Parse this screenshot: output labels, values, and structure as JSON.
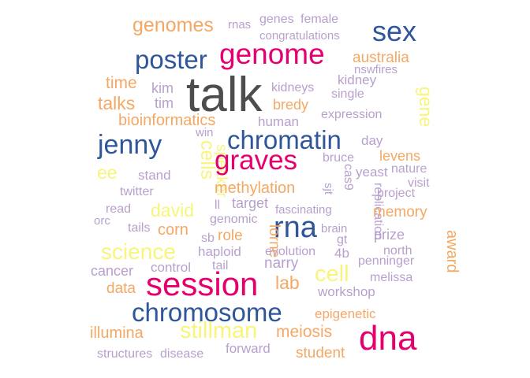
{
  "palette": {
    "dark": "#4d4d4d",
    "blue": "#2f569a",
    "magenta": "#e6006e",
    "orange": "#f5a864",
    "purple": "#b8a0cd",
    "yellow": "#f8f57a"
  },
  "words": [
    {
      "text": "talk",
      "color": "dark"
    },
    {
      "text": "genome",
      "color": "magenta"
    },
    {
      "text": "sex",
      "color": "blue"
    },
    {
      "text": "poster",
      "color": "blue"
    },
    {
      "text": "genomes",
      "color": "orange"
    },
    {
      "text": "rnas",
      "color": "purple"
    },
    {
      "text": "genes",
      "color": "purple"
    },
    {
      "text": "female",
      "color": "purple"
    },
    {
      "text": "congratulations",
      "color": "purple"
    },
    {
      "text": "australia",
      "color": "orange"
    },
    {
      "text": "nswfires",
      "color": "purple"
    },
    {
      "text": "kidney",
      "color": "purple"
    },
    {
      "text": "time",
      "color": "orange"
    },
    {
      "text": "kim",
      "color": "purple"
    },
    {
      "text": "kidneys",
      "color": "purple"
    },
    {
      "text": "single",
      "color": "purple"
    },
    {
      "text": "gene",
      "color": "yellow"
    },
    {
      "text": "talks",
      "color": "orange"
    },
    {
      "text": "tim",
      "color": "purple"
    },
    {
      "text": "bredy",
      "color": "orange"
    },
    {
      "text": "expression",
      "color": "purple"
    },
    {
      "text": "bioinformatics",
      "color": "orange"
    },
    {
      "text": "human",
      "color": "purple"
    },
    {
      "text": "win",
      "color": "purple"
    },
    {
      "text": "jenny",
      "color": "blue"
    },
    {
      "text": "chromatin",
      "color": "blue"
    },
    {
      "text": "day",
      "color": "purple"
    },
    {
      "text": "cells",
      "color": "yellow"
    },
    {
      "text": "speaker",
      "color": "yellow"
    },
    {
      "text": "graves",
      "color": "magenta"
    },
    {
      "text": "levens",
      "color": "orange"
    },
    {
      "text": "bruce",
      "color": "purple"
    },
    {
      "text": "ee",
      "color": "yellow"
    },
    {
      "text": "stand",
      "color": "purple"
    },
    {
      "text": "yeast",
      "color": "purple"
    },
    {
      "text": "nature",
      "color": "purple"
    },
    {
      "text": "visit",
      "color": "purple"
    },
    {
      "text": "methylation",
      "color": "orange"
    },
    {
      "text": "sjt",
      "color": "purple"
    },
    {
      "text": "cas9",
      "color": "purple"
    },
    {
      "text": "twitter",
      "color": "purple"
    },
    {
      "text": "project",
      "color": "purple"
    },
    {
      "text": "david",
      "color": "yellow"
    },
    {
      "text": "ll",
      "color": "purple"
    },
    {
      "text": "target",
      "color": "purple"
    },
    {
      "text": "replication",
      "color": "purple"
    },
    {
      "text": "read",
      "color": "purple"
    },
    {
      "text": "fascinating",
      "color": "purple"
    },
    {
      "text": "memory",
      "color": "orange"
    },
    {
      "text": "orc",
      "color": "purple"
    },
    {
      "text": "genomic",
      "color": "purple"
    },
    {
      "text": "rna",
      "color": "blue"
    },
    {
      "text": "brain",
      "color": "purple"
    },
    {
      "text": "tails",
      "color": "purple"
    },
    {
      "text": "corn",
      "color": "orange"
    },
    {
      "text": "gt",
      "color": "purple"
    },
    {
      "text": "prize",
      "color": "purple"
    },
    {
      "text": "award",
      "color": "orange"
    },
    {
      "text": "sb",
      "color": "purple"
    },
    {
      "text": "role",
      "color": "orange"
    },
    {
      "text": "science",
      "color": "yellow"
    },
    {
      "text": "haploid",
      "color": "purple"
    },
    {
      "text": "lorne",
      "color": "orange"
    },
    {
      "text": "evolution",
      "color": "purple"
    },
    {
      "text": "4b",
      "color": "purple"
    },
    {
      "text": "north",
      "color": "purple"
    },
    {
      "text": "penninger",
      "color": "purple"
    },
    {
      "text": "tail",
      "color": "purple"
    },
    {
      "text": "narry",
      "color": "purple"
    },
    {
      "text": "cancer",
      "color": "purple"
    },
    {
      "text": "control",
      "color": "purple"
    },
    {
      "text": "cell",
      "color": "yellow"
    },
    {
      "text": "melissa",
      "color": "purple"
    },
    {
      "text": "data",
      "color": "orange"
    },
    {
      "text": "session",
      "color": "magenta"
    },
    {
      "text": "lab",
      "color": "orange"
    },
    {
      "text": "workshop",
      "color": "purple"
    },
    {
      "text": "chromosome",
      "color": "blue"
    },
    {
      "text": "epigenetic",
      "color": "orange"
    },
    {
      "text": "illumina",
      "color": "orange"
    },
    {
      "text": "stillman",
      "color": "yellow"
    },
    {
      "text": "meiosis",
      "color": "orange"
    },
    {
      "text": "dna",
      "color": "magenta"
    },
    {
      "text": "structures",
      "color": "purple"
    },
    {
      "text": "disease",
      "color": "purple"
    },
    {
      "text": "forward",
      "color": "purple"
    },
    {
      "text": "student",
      "color": "orange"
    }
  ]
}
